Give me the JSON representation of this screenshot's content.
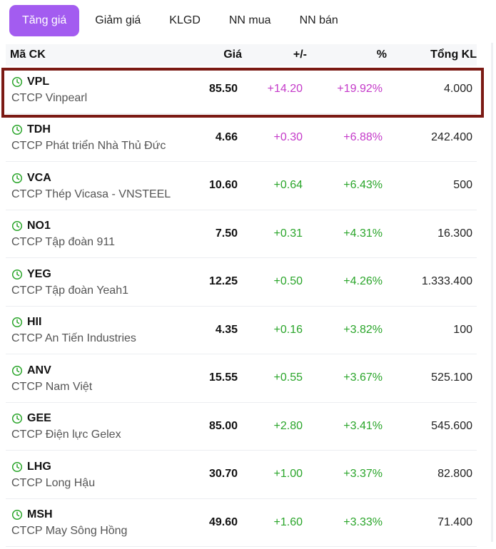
{
  "tabs": [
    {
      "label": "Tăng giá",
      "active": true
    },
    {
      "label": "Giảm giá",
      "active": false
    },
    {
      "label": "KLGD",
      "active": false
    },
    {
      "label": "NN mua",
      "active": false
    },
    {
      "label": "NN bán",
      "active": false
    }
  ],
  "table": {
    "headers": {
      "code": "Mã CK",
      "price": "Giá",
      "change": "+/-",
      "percent": "%",
      "volume": "Tổng KL"
    },
    "rows": [
      {
        "code": "VPL",
        "name": "CTCP Vinpearl",
        "price": "85.50",
        "change": "+14.20",
        "percent": "+19.92%",
        "volume": "4.000",
        "status": "ceil"
      },
      {
        "code": "TDH",
        "name": "CTCP Phát triển Nhà Thủ Đức",
        "price": "4.66",
        "change": "+0.30",
        "percent": "+6.88%",
        "volume": "242.400",
        "status": "ceil"
      },
      {
        "code": "VCA",
        "name": "CTCP Thép Vicasa - VNSTEEL",
        "price": "10.60",
        "change": "+0.64",
        "percent": "+6.43%",
        "volume": "500",
        "status": "up"
      },
      {
        "code": "NO1",
        "name": "CTCP Tập đoàn 911",
        "price": "7.50",
        "change": "+0.31",
        "percent": "+4.31%",
        "volume": "16.300",
        "status": "up"
      },
      {
        "code": "YEG",
        "name": "CTCP Tập đoàn Yeah1",
        "price": "12.25",
        "change": "+0.50",
        "percent": "+4.26%",
        "volume": "1.333.400",
        "status": "up"
      },
      {
        "code": "HII",
        "name": "CTCP An Tiến Industries",
        "price": "4.35",
        "change": "+0.16",
        "percent": "+3.82%",
        "volume": "100",
        "status": "up"
      },
      {
        "code": "ANV",
        "name": "CTCP Nam Việt",
        "price": "15.55",
        "change": "+0.55",
        "percent": "+3.67%",
        "volume": "525.100",
        "status": "up"
      },
      {
        "code": "GEE",
        "name": "CTCP Điện lực Gelex",
        "price": "85.00",
        "change": "+2.80",
        "percent": "+3.41%",
        "volume": "545.600",
        "status": "up"
      },
      {
        "code": "LHG",
        "name": "CTCP Long Hậu",
        "price": "30.70",
        "change": "+1.00",
        "percent": "+3.37%",
        "volume": "82.800",
        "status": "up"
      },
      {
        "code": "MSH",
        "name": "CTCP May Sông Hồng",
        "price": "49.60",
        "change": "+1.60",
        "percent": "+3.33%",
        "volume": "71.400",
        "status": "up"
      }
    ]
  },
  "colors": {
    "active_tab": "#a35cf0",
    "up": "#2aa52a",
    "ceil": "#c43ac9",
    "highlight_border": "#7b1a14"
  },
  "icons": {
    "row_icon": "clock-icon"
  }
}
